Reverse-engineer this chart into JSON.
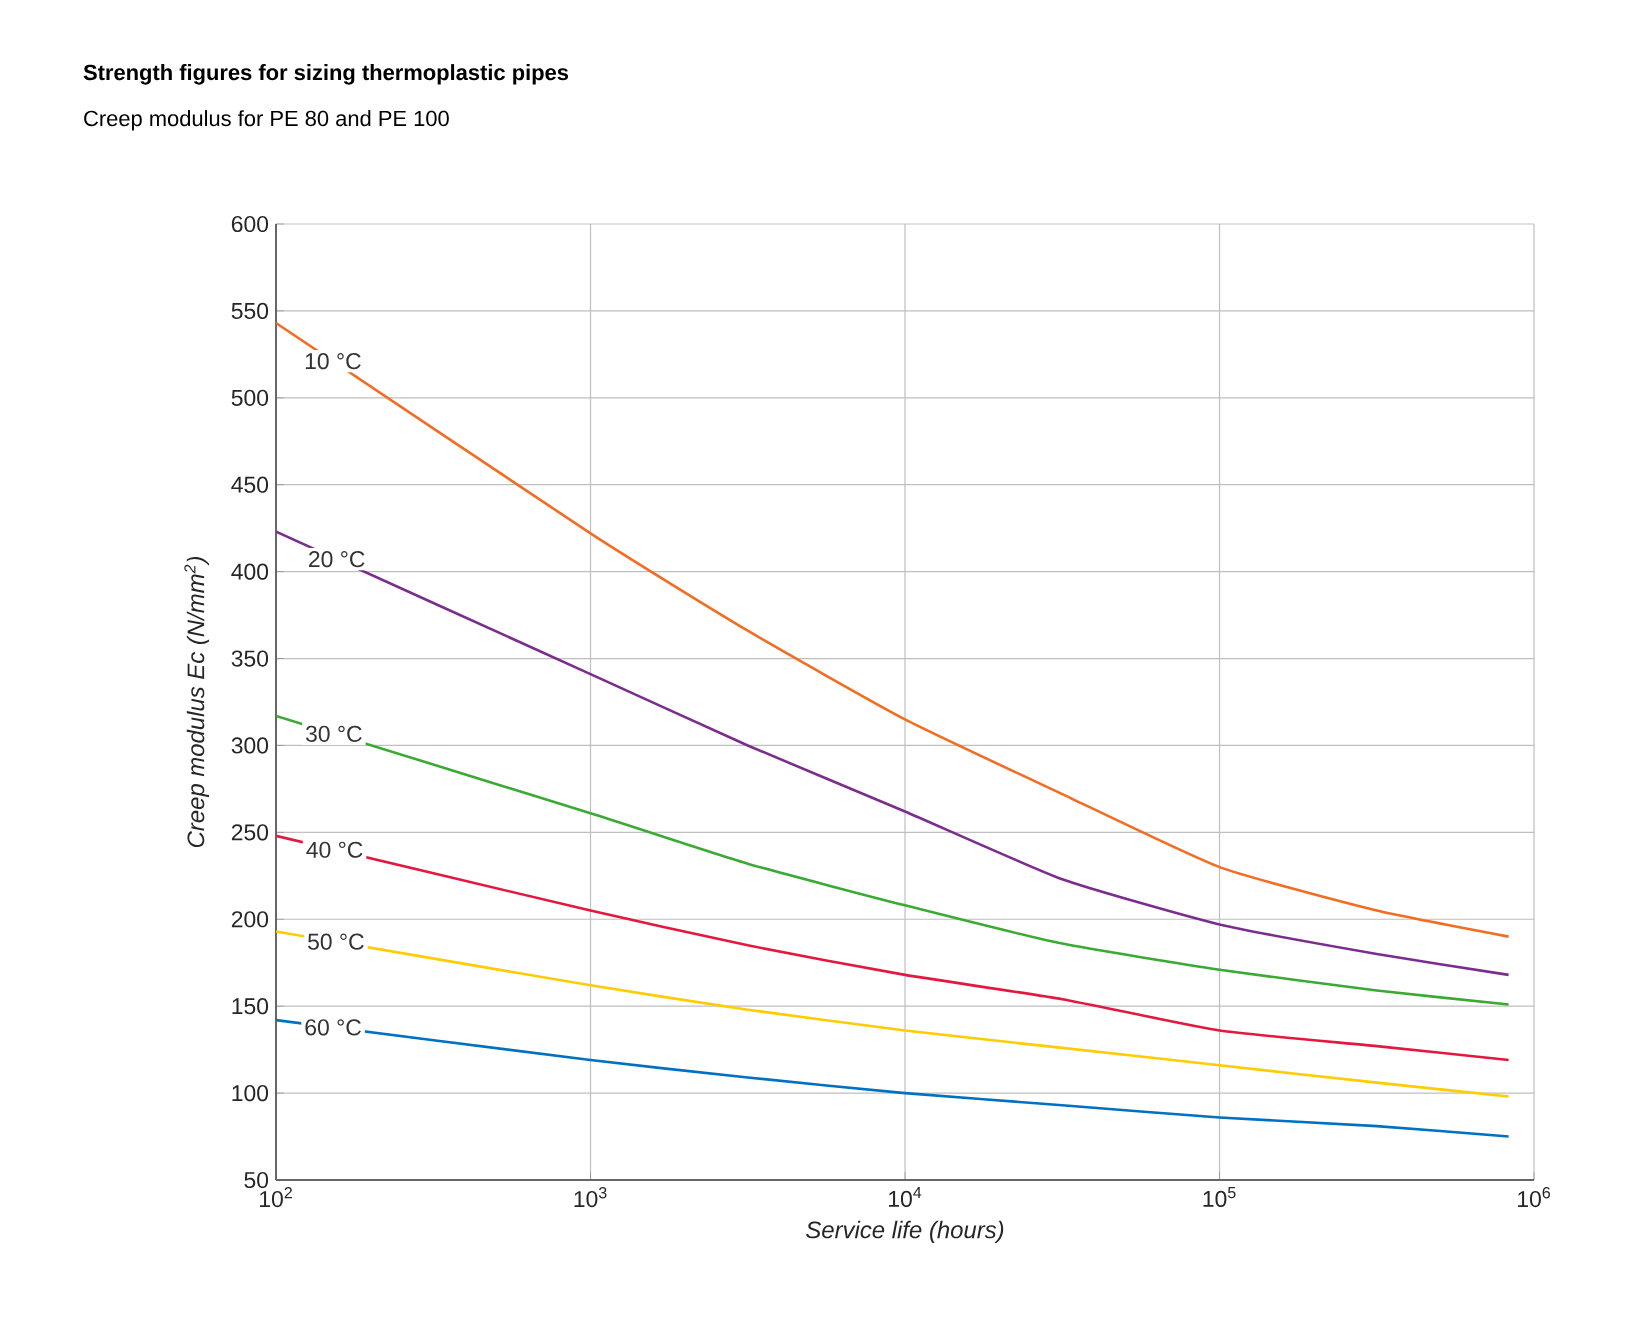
{
  "chart_data": {
    "type": "line",
    "title": "Strength figures for sizing thermoplastic pipes",
    "subtitle": "Creep modulus for PE 80 and PE 100",
    "xlabel": "Service life (hours)",
    "ylabel": "Creep modulus Ec (N/mm$^{2}$)",
    "x": [
      100,
      1000,
      3162,
      10000,
      31623,
      100000,
      316228,
      830000
    ],
    "series": [
      {
        "name": "10 °C",
        "color": "#f26d21",
        "values": [
          543,
          422,
          366,
          315,
          272,
          230,
          205,
          190
        ]
      },
      {
        "name": "20 °C",
        "color": "#7b2d8e",
        "values": [
          423,
          341,
          300,
          262,
          223,
          197,
          180,
          168
        ]
      },
      {
        "name": "30 °C",
        "color": "#3aaa35",
        "values": [
          317,
          261,
          232,
          208,
          186,
          171,
          159,
          151
        ]
      },
      {
        "name": "40 °C",
        "color": "#e4173e",
        "values": [
          248,
          205,
          185,
          168,
          154,
          136,
          127,
          119
        ]
      },
      {
        "name": "50 °C",
        "color": "#ffcc00",
        "values": [
          193,
          162,
          148,
          136,
          126,
          116,
          106,
          98
        ]
      },
      {
        "name": "60 °C",
        "color": "#0070c0",
        "values": [
          142,
          119,
          109,
          100,
          93,
          86,
          81,
          75
        ]
      }
    ],
    "log": "x",
    "grid": true,
    "xlim": [
      100,
      1000000
    ],
    "xticks": [
      {
        "value": 100,
        "label": "10$^{2}$"
      },
      {
        "value": 1000,
        "label": "10$^{3}$"
      },
      {
        "value": 10000,
        "label": "10$^{4}$"
      },
      {
        "value": 100000,
        "label": "10$^{5}$"
      },
      {
        "value": 1000000,
        "label": "10$^{6}$"
      }
    ],
    "ylim": [
      50,
      600
    ],
    "yticks": [
      50,
      100,
      150,
      200,
      250,
      300,
      350,
      400,
      450,
      500,
      550,
      600
    ]
  }
}
